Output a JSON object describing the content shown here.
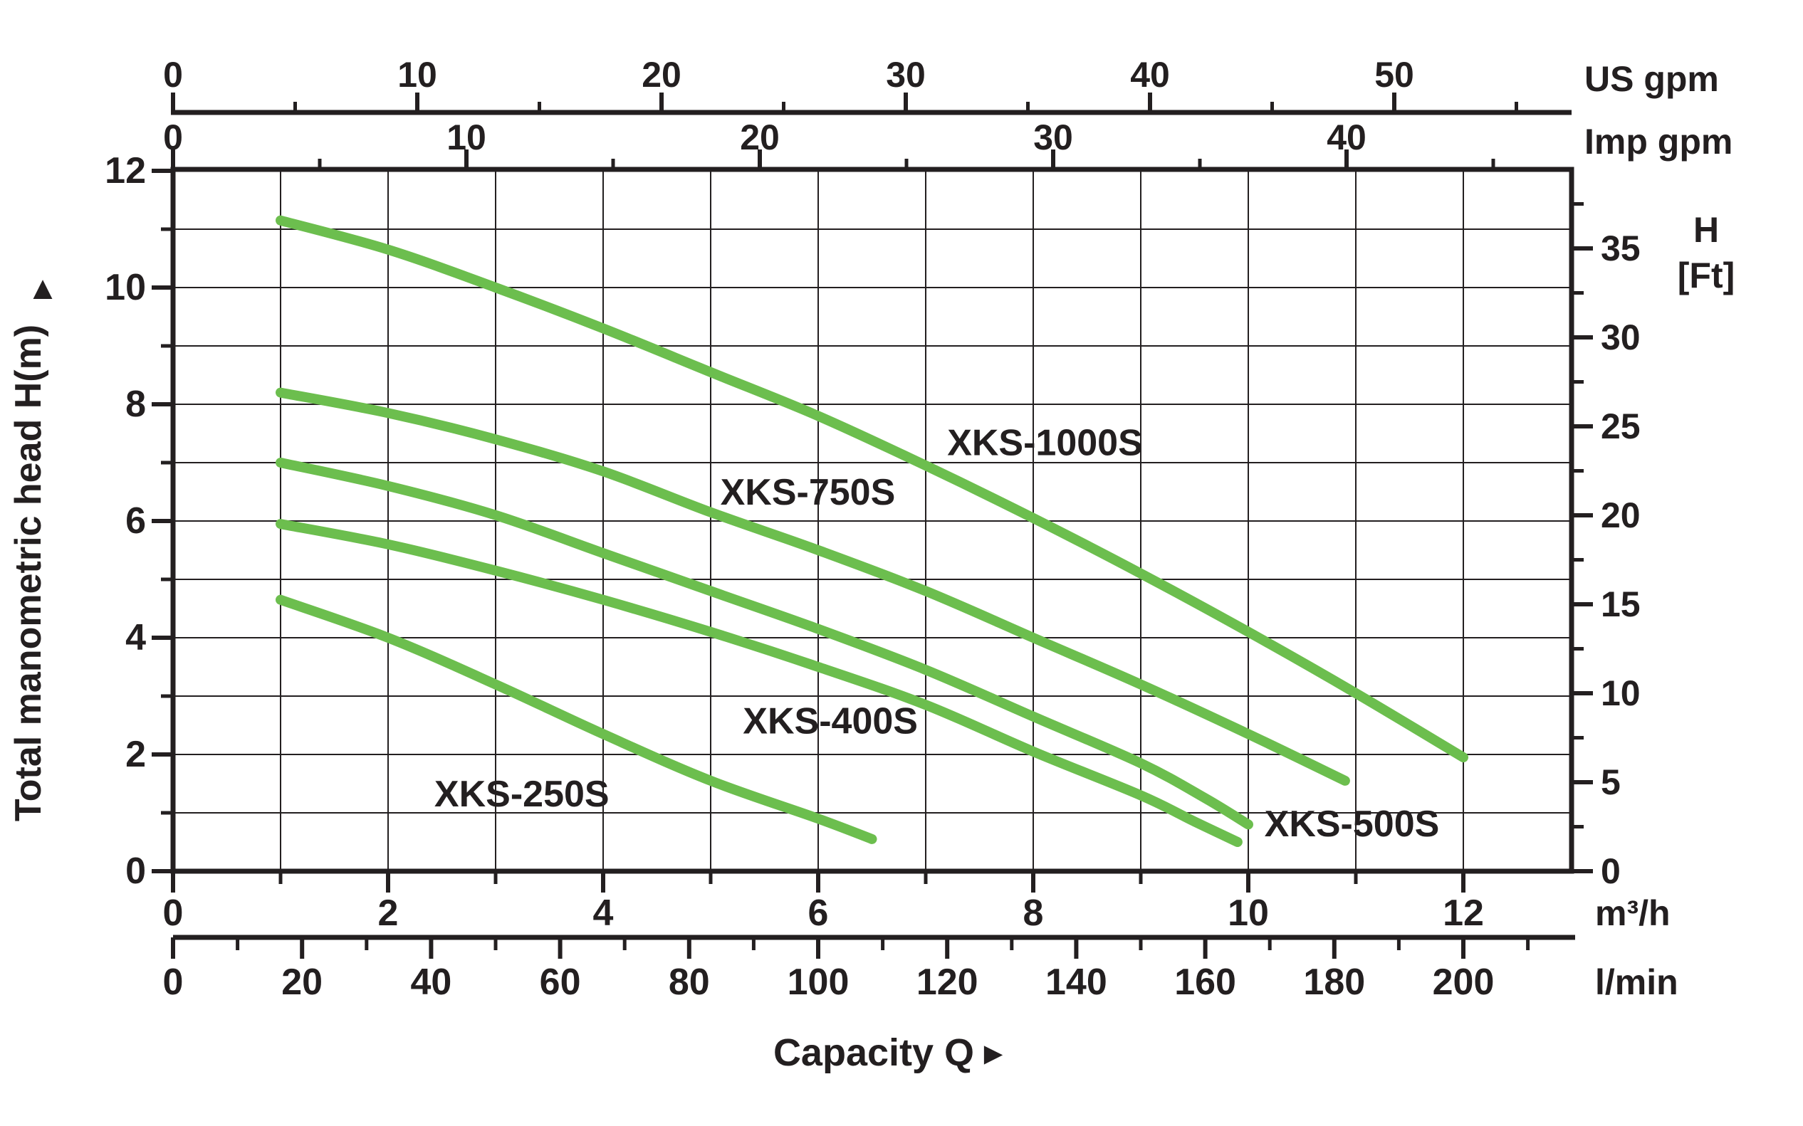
{
  "colors": {
    "curve_green": "#6CBE4E",
    "ink": "#231f20"
  },
  "left_axis": {
    "label": "Total manometric head H(m)",
    "arrow_up_icon": "▲",
    "unit_ticks": [
      0,
      2,
      4,
      6,
      8,
      10,
      12
    ]
  },
  "right_axis": {
    "label_line1": "H",
    "label_line2": "[Ft]",
    "unit_ticks": [
      0,
      5,
      10,
      15,
      20,
      25,
      30,
      35
    ]
  },
  "top_axis_us": {
    "unit": "US gpm",
    "ticks": [
      0,
      10,
      20,
      30,
      40,
      50
    ]
  },
  "top_axis_imp": {
    "unit": "Imp gpm",
    "ticks": [
      0,
      10,
      20,
      30,
      40
    ]
  },
  "bottom_axis_m3h": {
    "unit": "m³/h",
    "ticks": [
      0,
      2,
      4,
      6,
      8,
      10,
      12
    ]
  },
  "bottom_axis_lmin": {
    "unit": "l/min",
    "ticks": [
      0,
      20,
      40,
      60,
      80,
      100,
      120,
      140,
      160,
      180,
      200
    ]
  },
  "bottom_label": {
    "text": "Capacity Q",
    "arrow_right_icon": "►"
  },
  "chart_data": {
    "type": "line",
    "xlabel": "Capacity Q",
    "ylabel": "Total manometric head H(m)",
    "x_unit_primary": "m³/h",
    "x_equivalent_units": [
      "US gpm",
      "Imp gpm",
      "l/min"
    ],
    "xlim": [
      0,
      13
    ],
    "ylim": [
      0,
      12
    ],
    "ylim_ft": [
      0,
      37.5
    ],
    "grid": "on",
    "grid_step_x_m3h": 1,
    "grid_step_y_m": 1,
    "series": [
      {
        "name": "XKS-250S",
        "points_q_m3h_vs_head_m": [
          [
            1.0,
            4.65
          ],
          [
            2.0,
            4.0
          ],
          [
            3.0,
            3.2
          ],
          [
            4.0,
            2.35
          ],
          [
            5.0,
            1.55
          ],
          [
            6.0,
            0.9
          ],
          [
            6.5,
            0.55
          ]
        ],
        "label_pos_q_h": [
          2.43,
          1.33
        ]
      },
      {
        "name": "XKS-400S",
        "points_q_m3h_vs_head_m": [
          [
            1.0,
            5.95
          ],
          [
            2.0,
            5.6
          ],
          [
            3.0,
            5.15
          ],
          [
            4.0,
            4.65
          ],
          [
            5.0,
            4.1
          ],
          [
            6.0,
            3.5
          ],
          [
            7.0,
            2.85
          ],
          [
            8.0,
            2.05
          ],
          [
            9.0,
            1.3
          ],
          [
            9.5,
            0.85
          ],
          [
            9.9,
            0.5
          ]
        ],
        "label_pos_q_h": [
          5.3,
          2.58
        ]
      },
      {
        "name": "XKS-500S",
        "points_q_m3h_vs_head_m": [
          [
            1.0,
            7.0
          ],
          [
            2.0,
            6.6
          ],
          [
            3.0,
            6.1
          ],
          [
            4.0,
            5.45
          ],
          [
            5.0,
            4.8
          ],
          [
            6.0,
            4.15
          ],
          [
            7.0,
            3.45
          ],
          [
            8.0,
            2.65
          ],
          [
            9.0,
            1.85
          ],
          [
            9.6,
            1.25
          ],
          [
            10.0,
            0.8
          ]
        ],
        "label_pos_q_h": [
          10.15,
          0.82
        ]
      },
      {
        "name": "XKS-750S",
        "points_q_m3h_vs_head_m": [
          [
            1.0,
            8.2
          ],
          [
            2.0,
            7.85
          ],
          [
            3.0,
            7.4
          ],
          [
            4.0,
            6.85
          ],
          [
            5.0,
            6.15
          ],
          [
            6.0,
            5.5
          ],
          [
            7.0,
            4.8
          ],
          [
            8.0,
            4.0
          ],
          [
            9.0,
            3.2
          ],
          [
            10.0,
            2.35
          ],
          [
            10.9,
            1.55
          ]
        ],
        "label_pos_q_h": [
          5.09,
          6.5
        ]
      },
      {
        "name": "XKS-1000S",
        "points_q_m3h_vs_head_m": [
          [
            1.0,
            11.15
          ],
          [
            2.0,
            10.65
          ],
          [
            3.0,
            10.0
          ],
          [
            4.0,
            9.3
          ],
          [
            5.0,
            8.55
          ],
          [
            6.0,
            7.8
          ],
          [
            7.0,
            6.95
          ],
          [
            8.0,
            6.05
          ],
          [
            9.0,
            5.1
          ],
          [
            10.0,
            4.1
          ],
          [
            11.0,
            3.05
          ],
          [
            12.0,
            1.95
          ]
        ],
        "label_pos_q_h": [
          7.2,
          7.35
        ]
      }
    ]
  }
}
